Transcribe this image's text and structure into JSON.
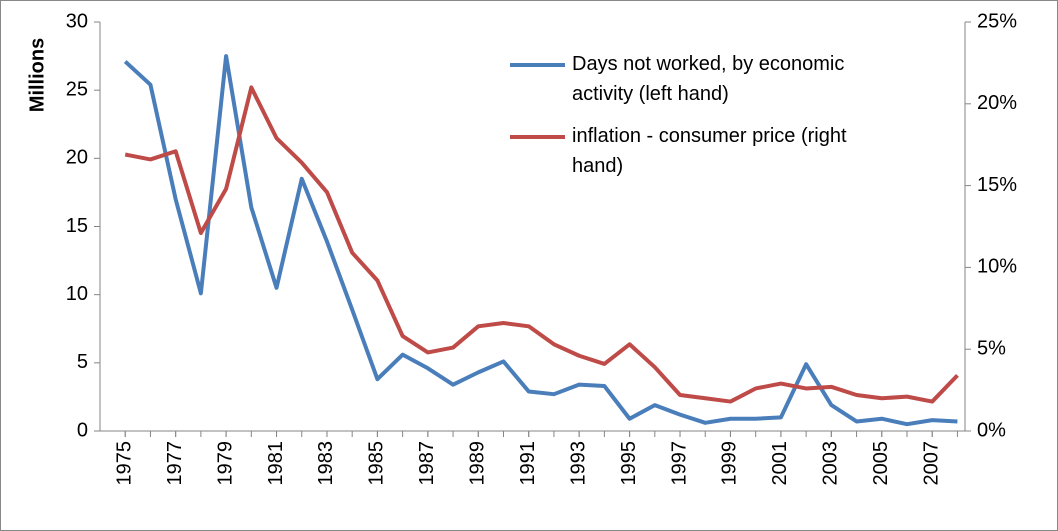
{
  "chart_data": {
    "type": "line",
    "y_label": "Millions",
    "x": [
      1975,
      1976,
      1977,
      1978,
      1979,
      1980,
      1981,
      1982,
      1983,
      1984,
      1985,
      1986,
      1987,
      1988,
      1989,
      1990,
      1991,
      1992,
      1993,
      1994,
      1995,
      1996,
      1997,
      1998,
      1999,
      2000,
      2001,
      2002,
      2003,
      2004,
      2005,
      2006,
      2007,
      2008
    ],
    "xlim": [
      1974,
      2008.3
    ],
    "xticks": [
      1975,
      1977,
      1979,
      1981,
      1983,
      1985,
      1987,
      1989,
      1991,
      1993,
      1995,
      1997,
      1999,
      2001,
      2003,
      2005,
      2007
    ],
    "ylim": [
      0,
      30
    ],
    "yticks": [
      0,
      5,
      10,
      15,
      20,
      25,
      30
    ],
    "y2lim": [
      0,
      25
    ],
    "y2ticks": [
      {
        "value": 0,
        "label": "0%"
      },
      {
        "value": 5,
        "label": "5%"
      },
      {
        "value": 10,
        "label": "10%"
      },
      {
        "value": 15,
        "label": "15%"
      },
      {
        "value": 20,
        "label": "20%"
      },
      {
        "value": 25,
        "label": "25%"
      }
    ],
    "grid": false,
    "legend": "top-right",
    "series": [
      {
        "name": "Days not worked, by economic activity (left hand)",
        "color": "#4a7ebb",
        "values": [
          27.1,
          25.4,
          17.0,
          10.1,
          27.5,
          16.4,
          10.5,
          18.5,
          13.9,
          8.9,
          3.8,
          5.6,
          4.6,
          3.4,
          4.3,
          5.1,
          2.9,
          2.7,
          3.4,
          3.3,
          0.9,
          1.9,
          1.2,
          0.6,
          0.9,
          0.9,
          1.0,
          4.9,
          1.9,
          0.7,
          0.9,
          0.5,
          0.8,
          0.7
        ]
      },
      {
        "name": "inflation - consumer price (right hand)",
        "color": "#be4b48",
        "axis": "y2",
        "values": [
          16.9,
          16.6,
          17.1,
          12.1,
          14.8,
          21.0,
          17.9,
          16.4,
          14.6,
          10.9,
          9.2,
          5.8,
          4.8,
          5.1,
          6.4,
          6.6,
          6.4,
          5.3,
          4.6,
          4.1,
          5.3,
          3.9,
          2.2,
          2.0,
          1.8,
          2.6,
          2.9,
          2.6,
          2.7,
          2.2,
          2.0,
          2.1,
          1.8,
          3.4
        ]
      }
    ]
  }
}
